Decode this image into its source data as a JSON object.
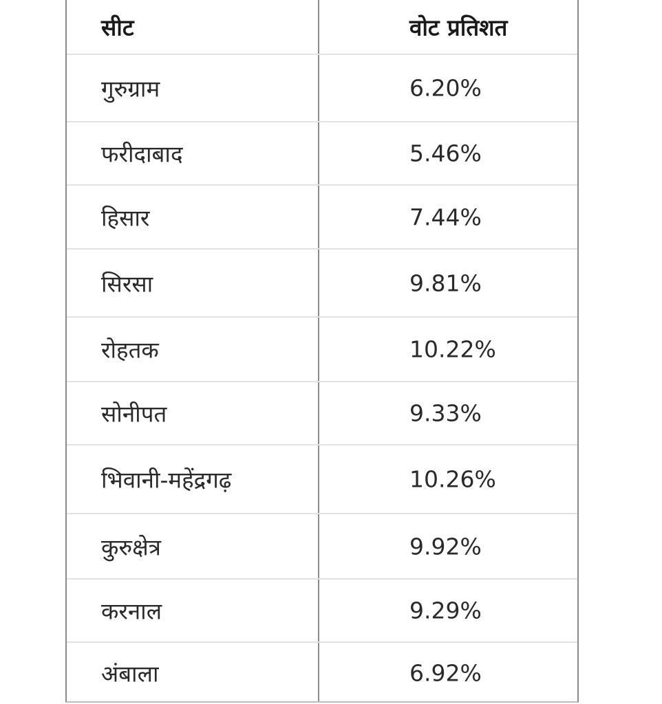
{
  "table": {
    "headers": [
      "सीट",
      "वोट प्रतिशत"
    ],
    "rows": [
      [
        "गुरुग्राम",
        "6.20%"
      ],
      [
        "फरीदाबाद",
        "5.46%"
      ],
      [
        "हिसार",
        "7.44%"
      ],
      [
        "सिरसा",
        "9.81%"
      ],
      [
        "रोहतक",
        "10.22%"
      ],
      [
        "सोनीपत",
        "9.33%"
      ],
      [
        "भिवानी-महेंद्रगढ़",
        "10.26%"
      ],
      [
        "कुरुक्षेत्र",
        "9.92%"
      ],
      [
        "करनाल",
        "9.29%"
      ],
      [
        "अंबाला",
        "6.92%"
      ]
    ]
  }
}
